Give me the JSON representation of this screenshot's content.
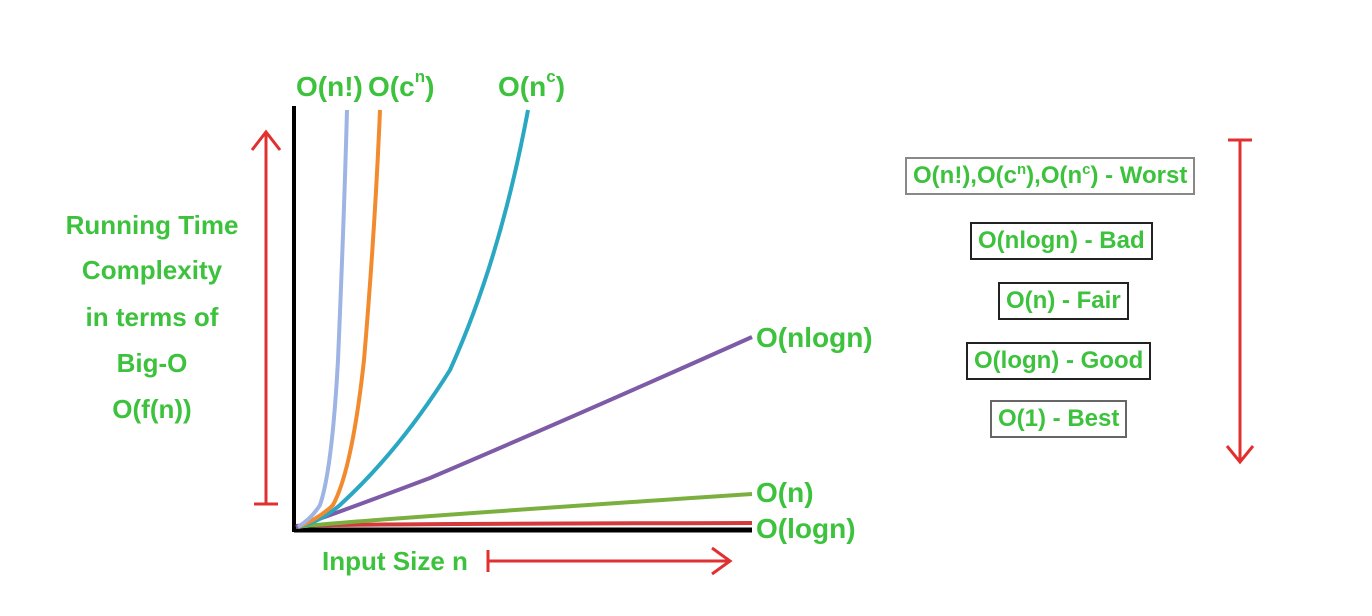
{
  "y_axis_label": [
    "Running Time",
    "Complexity",
    "in terms of",
    "Big-O",
    "O(f(n))"
  ],
  "x_axis_label": "Input Size n",
  "curves": [
    {
      "id": "factorial",
      "label": "O(n!)",
      "color": "#9db4e4"
    },
    {
      "id": "exponential",
      "label_base": "O(c",
      "label_sup": "n",
      "label_end": ")",
      "color": "#f28a2e"
    },
    {
      "id": "polynomial",
      "label_base": "O(n",
      "label_sup": "c",
      "label_end": ")",
      "color": "#2aa7c2"
    },
    {
      "id": "nlogn",
      "label": "O(nlogn)",
      "color": "#7d5ba6"
    },
    {
      "id": "linear",
      "label": "O(n)",
      "color": "#7bb040"
    },
    {
      "id": "log",
      "label": "O(logn)",
      "color": "#d43a3a"
    }
  ],
  "legend": {
    "worst": {
      "p1": "O(n!),O(c",
      "s1": "n",
      "p2": "),O(n",
      "s2": "c",
      "p3": ") - Worst"
    },
    "bad": "O(nlogn) - Bad",
    "fair": "O(n) - Fair",
    "good": "O(logn) - Good",
    "best": "O(1) - Best"
  },
  "colors": {
    "text_green": "#3cc23c",
    "arrow_red": "#e03030",
    "axis_black": "#000000"
  }
}
